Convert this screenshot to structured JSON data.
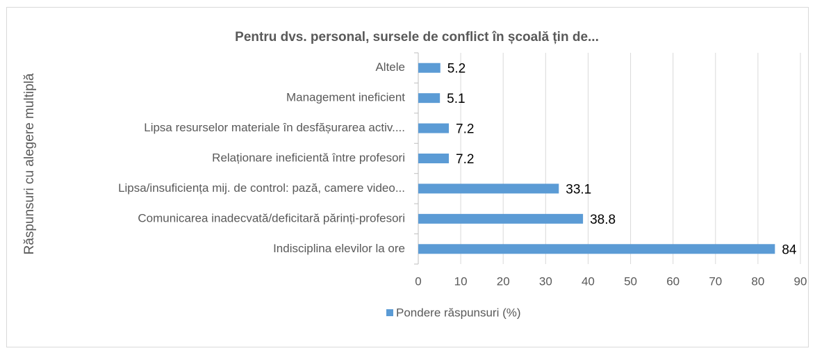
{
  "chart_data": {
    "type": "bar",
    "orientation": "horizontal",
    "title": "Pentru dvs. personal, sursele de conflict în școală țin de...",
    "y_label": "Răspunsuri cu alegere multiplă",
    "categories": [
      "Altele",
      "Management ineficient",
      "Lipsa resurselor materiale în desfășurarea activ....",
      "Relaționare ineficientă între profesori",
      "Lipsa/insuficiența mij. de control: pază, camere video...",
      "Comunicarea inadecvată/deficitară părinți-profesori",
      "Indisciplina elevilor la ore"
    ],
    "series": [
      {
        "name": "Pondere răspunsuri (%)",
        "color": "#5b9bd5",
        "values": [
          5.2,
          5.1,
          7.2,
          7.2,
          33.1,
          38.8,
          84
        ]
      }
    ],
    "xlim": [
      0,
      90
    ],
    "xticks": [
      0,
      10,
      20,
      30,
      40,
      50,
      60,
      70,
      80,
      90
    ],
    "grid": true,
    "legend": "bottom"
  }
}
